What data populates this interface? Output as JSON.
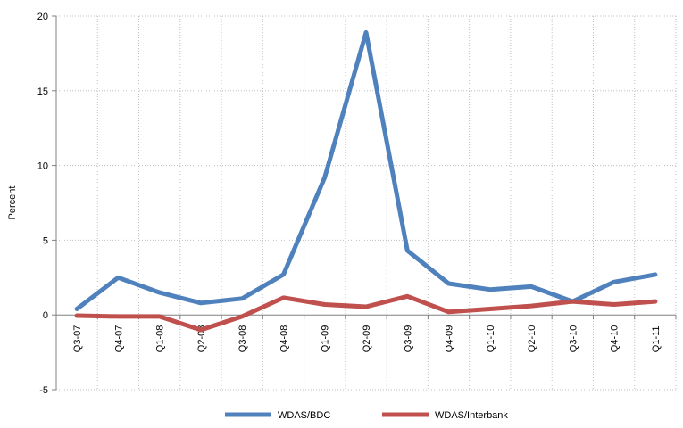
{
  "chart_data": {
    "type": "line",
    "title": "",
    "xlabel": "",
    "ylabel": "Percent",
    "ylim": [
      -5,
      20
    ],
    "yticks": [
      -5,
      0,
      5,
      10,
      15,
      20
    ],
    "grid": true,
    "legend_position": "bottom",
    "categories": [
      "Q3-07",
      "Q4-07",
      "Q1-08",
      "Q2-08",
      "Q3-08",
      "Q4-08",
      "Q1-09",
      "Q2-09",
      "Q3-09",
      "Q4-09",
      "Q1-10",
      "Q2-10",
      "Q3-10",
      "Q4-10",
      "Q1-11"
    ],
    "series": [
      {
        "name": "WDAS/BDC",
        "color": "#4F81BD",
        "values": [
          0.4,
          2.5,
          1.5,
          0.8,
          1.1,
          2.7,
          9.2,
          18.9,
          4.3,
          2.1,
          1.7,
          1.9,
          0.9,
          2.2,
          2.7
        ]
      },
      {
        "name": "WDAS/Interbank",
        "color": "#C0504D",
        "values": [
          -0.05,
          -0.1,
          -0.1,
          -1.0,
          -0.1,
          1.15,
          0.7,
          0.55,
          1.25,
          0.2,
          0.4,
          0.6,
          0.9,
          0.7,
          0.9
        ]
      }
    ]
  }
}
